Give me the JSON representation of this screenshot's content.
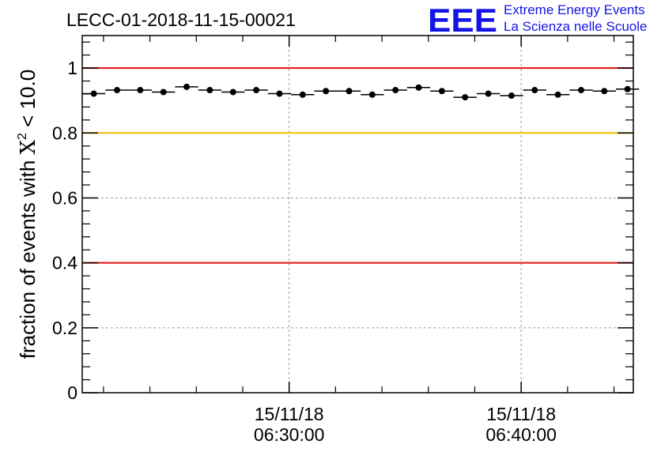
{
  "chart_data": {
    "type": "scatter",
    "title": "LECC-01-2018-11-15-00021",
    "logo": {
      "mark": "EEE",
      "line1": "Extreme Energy Events",
      "line2": "La Scienza nelle Scuole",
      "color": "#1414e6"
    },
    "ylabel": {
      "prefix": "fraction of events with ",
      "symbol": "X",
      "superscript": "2",
      "suffix": " < 10.0"
    },
    "xlabel": "",
    "ylim": [
      0,
      1.1
    ],
    "yticks": [
      {
        "value": 0,
        "label": "0"
      },
      {
        "value": 0.2,
        "label": "0.2"
      },
      {
        "value": 0.4,
        "label": "0.4"
      },
      {
        "value": 0.6,
        "label": "0.6"
      },
      {
        "value": 0.8,
        "label": "0.8"
      },
      {
        "value": 1,
        "label": "1"
      }
    ],
    "xlim": [
      "06:21:05",
      "06:44:50"
    ],
    "xticks": [
      {
        "value": "06:30:00",
        "date": "15/11/18",
        "time": "06:30:00"
      },
      {
        "value": "06:40:00",
        "date": "15/11/18",
        "time": "06:40:00"
      }
    ],
    "grid": true,
    "reference_lines": [
      {
        "y": 1.0,
        "color": "#e01010"
      },
      {
        "y": 0.8,
        "color": "#f0c000"
      },
      {
        "y": 0.4,
        "color": "#e01010"
      }
    ],
    "bin_width_seconds": 60,
    "series": [
      {
        "x": [
          "06:21:35",
          "06:22:35",
          "06:23:35",
          "06:24:35",
          "06:25:35",
          "06:26:35",
          "06:27:35",
          "06:28:35",
          "06:29:35",
          "06:30:35",
          "06:31:35",
          "06:32:35",
          "06:33:35",
          "06:34:35",
          "06:35:35",
          "06:36:35",
          "06:37:35",
          "06:38:35",
          "06:39:35",
          "06:40:35",
          "06:41:35",
          "06:42:35",
          "06:43:35",
          "06:44:35"
        ],
        "y": [
          0.921,
          0.932,
          0.932,
          0.926,
          0.942,
          0.932,
          0.926,
          0.932,
          0.921,
          0.918,
          0.929,
          0.929,
          0.918,
          0.932,
          0.94,
          0.929,
          0.91,
          0.921,
          0.915,
          0.932,
          0.918,
          0.932,
          0.929,
          0.935
        ]
      }
    ],
    "marker_color": "#000000"
  }
}
